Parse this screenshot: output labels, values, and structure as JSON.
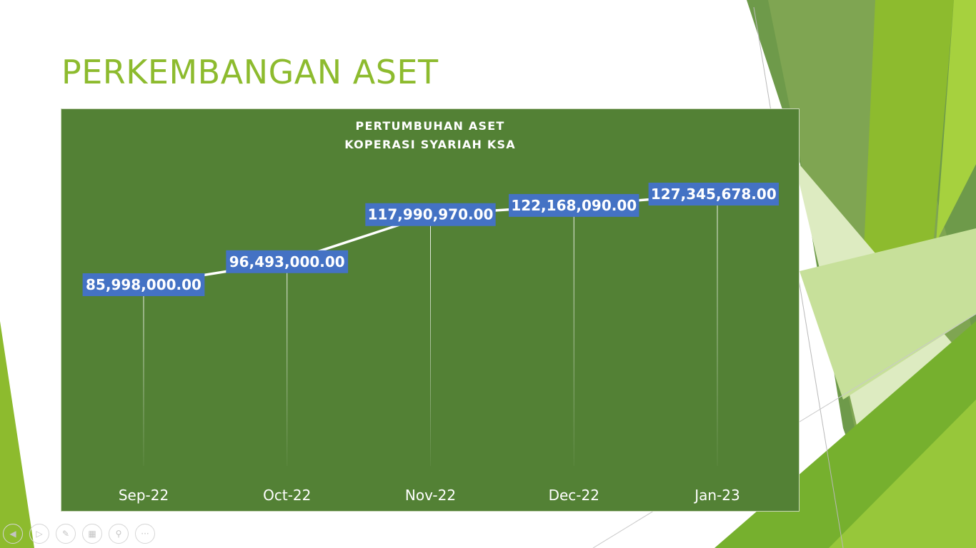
{
  "slide": {
    "title": "PERKEMBANGAN ASET"
  },
  "colors": {
    "accent_green": "#8DBB2E",
    "panel": "#538135",
    "label_box": "#4472C4",
    "line": "#FFFFFF"
  },
  "chart_data": {
    "type": "line",
    "title": "PERTUMBUHAN ASET",
    "subtitle": "KOPERASI SYARIAH KSA",
    "categories": [
      "Sep-22",
      "Oct-22",
      "Nov-22",
      "Dec-22",
      "Jan-23"
    ],
    "values": [
      85998000,
      96493000,
      117990970,
      122168090,
      127345678
    ],
    "data_labels": [
      "85,998,000.00",
      "96,493,000.00",
      "117,990,970.00",
      "122,168,090.00",
      "127,345,678.00"
    ],
    "drop_lines": true,
    "grid": false,
    "legend": "none"
  },
  "nav": {
    "icons": [
      "prev-icon",
      "next-icon",
      "pen-icon",
      "slides-icon",
      "zoom-icon",
      "more-icon"
    ]
  }
}
